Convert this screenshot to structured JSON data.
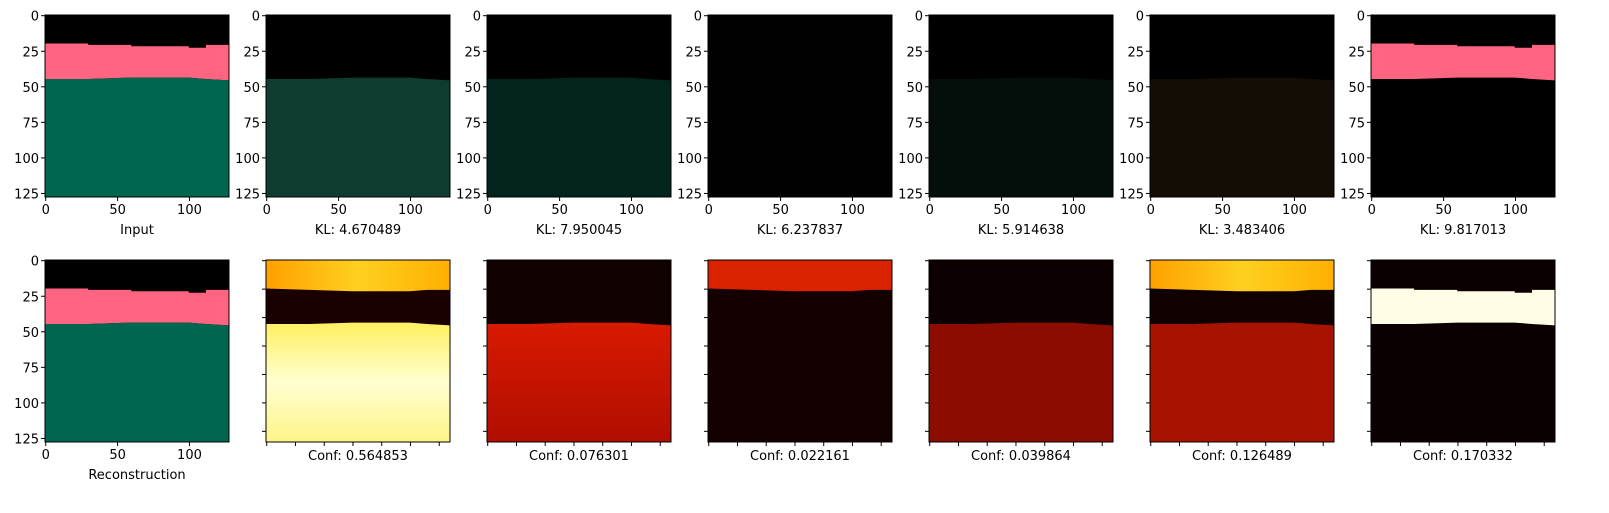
{
  "axes": {
    "xlim": [
      -0.5,
      127.5
    ],
    "ylim": [
      127.5,
      -0.5
    ],
    "xticks": [
      0,
      50,
      100
    ],
    "yticks": [
      0,
      25,
      50,
      75,
      100,
      125
    ]
  },
  "top_row": [
    {
      "label": "Input"
    },
    {
      "label": "KL: 4.670489"
    },
    {
      "label": "KL: 7.950045"
    },
    {
      "label": "KL: 6.237837"
    },
    {
      "label": "KL: 5.914638"
    },
    {
      "label": "KL: 3.483406"
    },
    {
      "label": "KL: 9.817013"
    }
  ],
  "bottom_row": [
    {
      "label": "Reconstruction"
    },
    {
      "label": "Conf: 0.564853"
    },
    {
      "label": "Conf: 0.076301"
    },
    {
      "label": "Conf: 0.022161"
    },
    {
      "label": "Conf: 0.039864"
    },
    {
      "label": "Conf: 0.126489"
    },
    {
      "label": "Conf: 0.170332"
    }
  ]
}
